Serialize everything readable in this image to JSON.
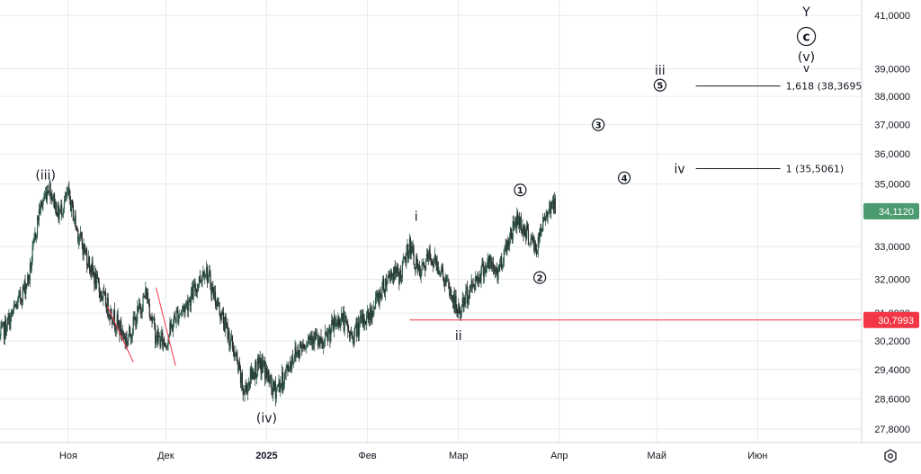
{
  "colors": {
    "background": "#ffffff",
    "grid": "#e8eaed",
    "candle_up": "#2e5e4e",
    "candle_down": "#26282b",
    "current_price": "#4c9a6f",
    "support_line": "#f23645",
    "red_channel": "#f23645",
    "axis_text": "#131722",
    "axis_border": "#d1d4dc"
  },
  "icons": {
    "settings": "gear-icon"
  },
  "chart_data": {
    "type": "candlestick",
    "y_axis": {
      "ticks": [
        "41,0000",
        "39,0000",
        "38,0000",
        "37,0000",
        "36,0000",
        "35,0000",
        "33,0000",
        "32,0000",
        "31,0000",
        "30,2000",
        "29,4000",
        "28,6000",
        "27,8000"
      ],
      "tick_values": [
        41.0,
        39.0,
        38.0,
        37.0,
        36.0,
        35.0,
        33.0,
        32.0,
        31.0,
        30.2,
        29.4,
        28.6,
        27.8
      ],
      "scale": "log",
      "range": [
        27.45,
        41.6
      ]
    },
    "x_axis": {
      "ticks": [
        "Ноя",
        "Дек",
        "2025",
        "Фев",
        "Мар",
        "Апр",
        "Май",
        "Июн"
      ],
      "tick_dates": [
        "2024-11-01",
        "2024-12-01",
        "2025-01-01",
        "2025-02-01",
        "2025-03-01",
        "2025-04-01",
        "2025-05-01",
        "2025-06-01"
      ],
      "range": [
        "2024-10-11",
        "2025-07-03"
      ]
    },
    "grid": true,
    "price_path": [
      [
        "2024-10-11",
        30.3
      ],
      [
        "2024-10-14",
        30.8
      ],
      [
        "2024-10-17",
        31.4
      ],
      [
        "2024-10-20",
        32.1
      ],
      [
        "2024-10-23",
        34.1
      ],
      [
        "2024-10-26",
        34.95
      ],
      [
        "2024-10-29",
        34.0
      ],
      [
        "2024-11-01",
        34.65
      ],
      [
        "2024-11-04",
        33.4
      ],
      [
        "2024-11-07",
        32.6
      ],
      [
        "2024-11-10",
        31.8
      ],
      [
        "2024-11-13",
        31.2
      ],
      [
        "2024-11-16",
        30.7
      ],
      [
        "2024-11-19",
        30.2
      ],
      [
        "2024-11-22",
        30.9
      ],
      [
        "2024-11-25",
        31.6
      ],
      [
        "2024-11-28",
        30.3
      ],
      [
        "2024-12-01",
        30.15
      ],
      [
        "2024-12-04",
        30.9
      ],
      [
        "2024-12-07",
        31.2
      ],
      [
        "2024-12-10",
        31.7
      ],
      [
        "2024-12-13",
        32.35
      ],
      [
        "2024-12-16",
        31.5
      ],
      [
        "2024-12-19",
        30.7
      ],
      [
        "2024-12-22",
        29.9
      ],
      [
        "2024-12-25",
        28.75
      ],
      [
        "2024-12-28",
        29.4
      ],
      [
        "2024-12-31",
        29.5
      ],
      [
        "2025-01-03",
        28.8
      ],
      [
        "2025-01-06",
        29.1
      ],
      [
        "2025-01-09",
        29.75
      ],
      [
        "2025-01-12",
        30.1
      ],
      [
        "2025-01-15",
        30.4
      ],
      [
        "2025-01-18",
        30.0
      ],
      [
        "2025-01-21",
        30.55
      ],
      [
        "2025-01-24",
        30.9
      ],
      [
        "2025-01-27",
        30.3
      ],
      [
        "2025-01-30",
        30.7
      ],
      [
        "2025-02-02",
        31.0
      ],
      [
        "2025-02-05",
        31.6
      ],
      [
        "2025-02-08",
        32.2
      ],
      [
        "2025-02-11",
        32.1
      ],
      [
        "2025-02-14",
        33.05
      ],
      [
        "2025-02-17",
        32.1
      ],
      [
        "2025-02-20",
        32.7
      ],
      [
        "2025-02-23",
        32.4
      ],
      [
        "2025-02-26",
        31.7
      ],
      [
        "2025-03-01",
        31.0
      ],
      [
        "2025-03-04",
        31.6
      ],
      [
        "2025-03-07",
        32.1
      ],
      [
        "2025-03-10",
        32.5
      ],
      [
        "2025-03-13",
        32.2
      ],
      [
        "2025-03-16",
        33.1
      ],
      [
        "2025-03-19",
        33.9
      ],
      [
        "2025-03-22",
        33.4
      ],
      [
        "2025-03-25",
        32.9
      ],
      [
        "2025-03-28",
        34.1
      ],
      [
        "2025-03-30",
        34.4
      ],
      [
        "2025-03-31",
        34.11
      ]
    ],
    "current_price": {
      "value": 34.112,
      "label": "34,1120"
    },
    "support_line": {
      "value": 30.7993,
      "label": "30,7993",
      "from": "2025-02-14"
    },
    "red_channels": [
      {
        "from": [
          "2024-11-13",
          31.2
        ],
        "to": [
          "2024-11-21",
          29.6
        ]
      },
      {
        "from": [
          "2024-11-28",
          31.75
        ],
        "to": [
          "2024-12-04",
          29.5
        ]
      }
    ],
    "fib_levels": [
      {
        "ratio": "1,618",
        "value": 38.3695,
        "label": "1,618 (38,3695)",
        "from": "2025-05-13",
        "to": "2025-06-08"
      },
      {
        "ratio": "1",
        "value": 35.5061,
        "label": "1 (35,5061)",
        "from": "2025-05-13",
        "to": "2025-06-08"
      }
    ],
    "wave_labels": [
      {
        "text": "(iii)",
        "date": "2024-10-25",
        "price": 35.3,
        "style": "large"
      },
      {
        "text": "(iv)",
        "date": "2025-01-01",
        "price": 28.1,
        "style": "large"
      },
      {
        "text": "i",
        "date": "2025-02-16",
        "price": 33.95,
        "style": "large"
      },
      {
        "text": "ii",
        "date": "2025-03-01",
        "price": 30.35,
        "style": "large"
      },
      {
        "text": "1",
        "date": "2025-03-20",
        "price": 34.8,
        "style": "circled"
      },
      {
        "text": "2",
        "date": "2025-03-26",
        "price": 32.05,
        "style": "circled"
      },
      {
        "text": "3",
        "date": "2025-04-13",
        "price": 37.0,
        "style": "circled"
      },
      {
        "text": "4",
        "date": "2025-04-21",
        "price": 35.2,
        "style": "circled"
      },
      {
        "text": "5",
        "date": "2025-05-02",
        "price": 38.4,
        "style": "circled"
      },
      {
        "text": "iii",
        "date": "2025-05-02",
        "price": 38.95,
        "style": "large"
      },
      {
        "text": "iv",
        "date": "2025-05-08",
        "price": 35.5,
        "style": "large"
      },
      {
        "text": "Y",
        "date": "2025-06-16",
        "price": 41.15,
        "style": "large"
      },
      {
        "text": "c",
        "date": "2025-06-16",
        "price": 40.2,
        "style": "circled-large"
      },
      {
        "text": "(v)",
        "date": "2025-06-16",
        "price": 39.45,
        "style": "large"
      },
      {
        "text": "v",
        "date": "2025-06-16",
        "price": 39.05,
        "style": "small"
      }
    ]
  }
}
